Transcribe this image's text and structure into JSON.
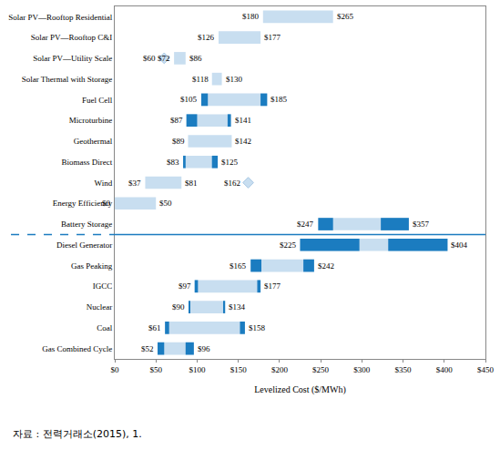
{
  "chart_data": {
    "type": "floating_bar",
    "orientation": "horizontal",
    "categories": [
      "Solar PV—Rooftop Residential",
      "Solar PV—Rooftop C&I",
      "Solar PV—Utility Scale",
      "Solar Thermal with Storage",
      "Fuel Cell",
      "Microturbine",
      "Geothermal",
      "Biomass Direct",
      "Wind",
      "Energy Efficiency",
      "Battery Storage",
      "Diesel Generator",
      "Gas Peaking",
      "IGCC",
      "Nuclear",
      "Coal",
      "Gas Combined Cycle"
    ],
    "low": [
      180,
      126,
      72,
      118,
      105,
      87,
      89,
      83,
      37,
      0,
      247,
      225,
      165,
      97,
      90,
      61,
      52
    ],
    "high": [
      265,
      177,
      86,
      130,
      185,
      141,
      142,
      125,
      81,
      50,
      357,
      404,
      242,
      177,
      134,
      158,
      96
    ],
    "low_labels": [
      "$180",
      "$126",
      "$72",
      "$118",
      "$105",
      "$87",
      "$89",
      "$83",
      "$37",
      "$0",
      "$247",
      "$225",
      "$165",
      "$97",
      "$90",
      "$61",
      "$52"
    ],
    "high_labels": [
      "$265",
      "$177",
      "$86",
      "$130",
      "$185",
      "$141",
      "$142",
      "$125",
      "$81",
      "$50",
      "$357",
      "$404",
      "$242",
      "$177",
      "$134",
      "$158",
      "$96"
    ],
    "color": "#c8def0",
    "dark_color": "#1b7cc0",
    "dark_segments": [
      [],
      [],
      [],
      [],
      [
        [
          105,
          113
        ],
        [
          177,
          185
        ]
      ],
      [
        [
          87,
          100
        ],
        [
          137,
          141
        ]
      ],
      [],
      [
        [
          83,
          86
        ],
        [
          118,
          125
        ]
      ],
      [],
      [],
      [
        [
          247,
          265
        ],
        [
          323,
          357
        ]
      ],
      [
        [
          225,
          297
        ],
        [
          332,
          404
        ]
      ],
      [
        [
          165,
          178
        ],
        [
          229,
          242
        ]
      ],
      [
        [
          97,
          101
        ],
        [
          173,
          177
        ]
      ],
      [
        [
          90,
          91
        ],
        [
          132,
          134
        ]
      ],
      [
        [
          61,
          66
        ],
        [
          152,
          158
        ]
      ],
      [
        [
          52,
          60
        ],
        [
          86,
          96
        ]
      ]
    ],
    "markers": [
      {
        "category": "Solar PV—Utility Scale",
        "value": 60,
        "label": "$60"
      },
      {
        "category": "Wind",
        "value": 162,
        "label": "$162"
      }
    ],
    "marker": "diamond",
    "data_labels": true,
    "xlim": [
      0,
      450
    ],
    "xticks": [
      {
        "value": 0,
        "label": "$0"
      },
      {
        "value": 50,
        "label": "$50"
      },
      {
        "value": 100,
        "label": "$100"
      },
      {
        "value": 150,
        "label": "$150"
      },
      {
        "value": 200,
        "label": "$200"
      },
      {
        "value": 250,
        "label": "$250"
      },
      {
        "value": 300,
        "label": "$300"
      },
      {
        "value": 350,
        "label": "$350"
      },
      {
        "value": 400,
        "label": "$400"
      },
      {
        "value": 450,
        "label": "$450"
      }
    ],
    "x_label": "Levelized Cost ($/MWh)",
    "source_note": "자료 : 전력거래소(2015), 1.",
    "grid": false
  }
}
